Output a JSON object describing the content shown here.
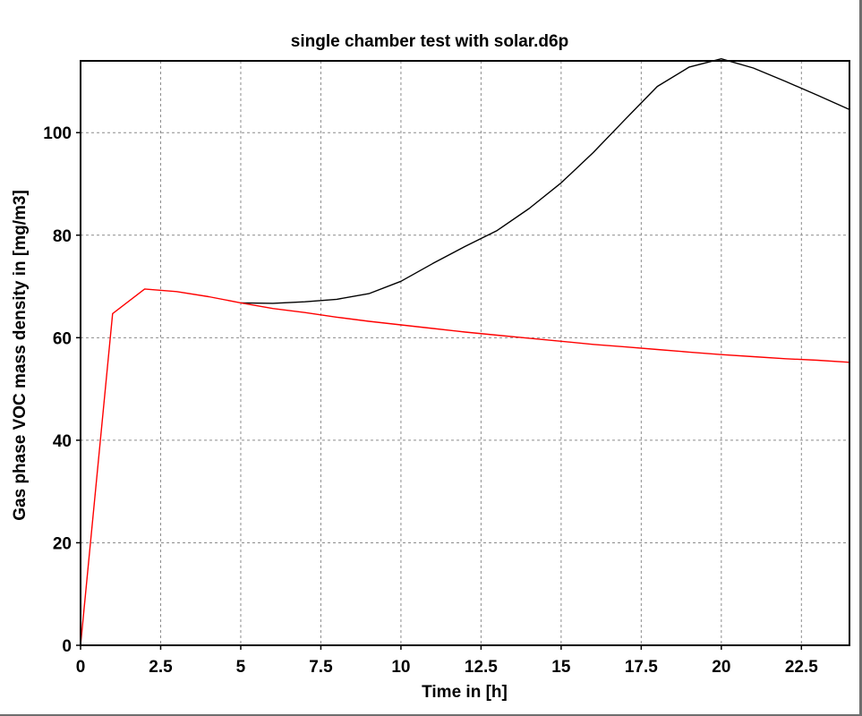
{
  "chart_data": {
    "type": "line",
    "title": "single chamber test with solar.d6p",
    "xlabel": "Time in [h]",
    "ylabel": "Gas phase VOC mass density in [mg/m3]",
    "xlim": [
      0,
      24
    ],
    "ylim": [
      0,
      114
    ],
    "x_ticks": [
      0,
      2.5,
      5,
      7.5,
      10,
      12.5,
      15,
      17.5,
      20,
      22.5
    ],
    "x_tick_labels": [
      "0",
      "2.5",
      "5",
      "7.5",
      "10",
      "12.5",
      "15",
      "17.5",
      "20",
      "22.5"
    ],
    "y_ticks": [
      0,
      20,
      40,
      60,
      80,
      100
    ],
    "y_tick_labels": [
      "0",
      "20",
      "40",
      "60",
      "80",
      "100"
    ],
    "grid": true,
    "legend": "none",
    "series": [
      {
        "color": "#000000",
        "x": [
          5,
          6,
          7,
          8,
          9,
          10,
          11,
          12,
          13,
          14,
          15,
          16,
          17,
          18,
          19,
          20,
          21,
          22,
          23,
          24
        ],
        "y": [
          66.8,
          66.7,
          67.0,
          67.5,
          68.6,
          71.0,
          74.5,
          77.8,
          80.9,
          85.2,
          90.2,
          96.1,
          102.6,
          109.0,
          112.8,
          114.4,
          112.6,
          110.0,
          107.3,
          104.5
        ]
      },
      {
        "color": "#ff0000",
        "x": [
          0,
          1,
          2,
          3,
          4,
          5,
          6,
          7,
          8,
          9,
          10,
          11,
          12,
          13,
          14,
          15,
          16,
          17,
          18,
          19,
          20,
          21,
          22,
          23,
          24
        ],
        "y": [
          0,
          64.7,
          69.5,
          69.0,
          68.0,
          66.8,
          65.7,
          64.9,
          64.0,
          63.2,
          62.5,
          61.8,
          61.1,
          60.5,
          59.9,
          59.3,
          58.7,
          58.2,
          57.7,
          57.2,
          56.7,
          56.3,
          55.9,
          55.6,
          55.2
        ]
      }
    ]
  }
}
